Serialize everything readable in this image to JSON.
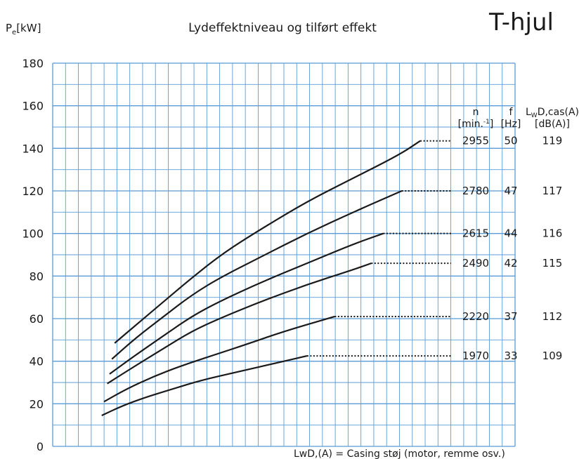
{
  "chart_data": {
    "type": "line",
    "title": "Lydeffektniveau og tilført effekt",
    "corner_title": "T-hjul",
    "ylabel_main": "P",
    "ylabel_sub": "e",
    "ylabel_unit": "[kW]",
    "ylim": [
      0,
      180
    ],
    "yticks": [
      0,
      20,
      40,
      60,
      80,
      100,
      120,
      140,
      160,
      180
    ],
    "grid": true,
    "table_headers": {
      "n": {
        "line1": "n",
        "line2a": "[min.",
        "line2sup": "-1",
        "line2b": "]"
      },
      "f": {
        "line1": "f",
        "line2": "[Hz]"
      },
      "l": {
        "line1a": "L",
        "line1sub": "W",
        "line1b": "D,cas(A)",
        "line2": "[dB(A)]"
      }
    },
    "series": [
      {
        "n": "2955",
        "f": "50",
        "l": "119",
        "color": "#1a1a1a",
        "points": [
          [
            0.134,
            48.5
          ],
          [
            0.18,
            57
          ],
          [
            0.24,
            68
          ],
          [
            0.3,
            79
          ],
          [
            0.37,
            91
          ],
          [
            0.45,
            102
          ],
          [
            0.55,
            115
          ],
          [
            0.65,
            126
          ],
          [
            0.75,
            137
          ],
          [
            0.795,
            143.5
          ]
        ]
      },
      {
        "n": "2780",
        "f": "47",
        "l": "117",
        "color": "#1a1a1a",
        "points": [
          [
            0.128,
            41
          ],
          [
            0.18,
            51
          ],
          [
            0.24,
            61
          ],
          [
            0.3,
            71
          ],
          [
            0.36,
            79
          ],
          [
            0.45,
            89
          ],
          [
            0.55,
            100
          ],
          [
            0.65,
            110
          ],
          [
            0.755,
            120
          ]
        ]
      },
      {
        "n": "2615",
        "f": "44",
        "l": "116",
        "color": "#1a1a1a",
        "points": [
          [
            0.123,
            34
          ],
          [
            0.18,
            43
          ],
          [
            0.24,
            52
          ],
          [
            0.3,
            61
          ],
          [
            0.36,
            68
          ],
          [
            0.45,
            77
          ],
          [
            0.55,
            86
          ],
          [
            0.65,
            95
          ],
          [
            0.715,
            100
          ]
        ]
      },
      {
        "n": "2490",
        "f": "42",
        "l": "115",
        "color": "#1a1a1a",
        "points": [
          [
            0.118,
            29.5
          ],
          [
            0.18,
            38
          ],
          [
            0.24,
            46
          ],
          [
            0.3,
            54
          ],
          [
            0.36,
            60
          ],
          [
            0.45,
            68
          ],
          [
            0.55,
            76
          ],
          [
            0.65,
            83
          ],
          [
            0.689,
            86
          ]
        ]
      },
      {
        "n": "2220",
        "f": "37",
        "l": "112",
        "color": "#1a1a1a",
        "points": [
          [
            0.111,
            21
          ],
          [
            0.16,
            27
          ],
          [
            0.22,
            33
          ],
          [
            0.28,
            38
          ],
          [
            0.35,
            43
          ],
          [
            0.42,
            48
          ],
          [
            0.5,
            54
          ],
          [
            0.61,
            61
          ]
        ]
      },
      {
        "n": "1970",
        "f": "33",
        "l": "109",
        "color": "#1a1a1a",
        "points": [
          [
            0.106,
            14.5
          ],
          [
            0.15,
            19
          ],
          [
            0.2,
            23
          ],
          [
            0.26,
            27
          ],
          [
            0.32,
            31
          ],
          [
            0.4,
            35
          ],
          [
            0.48,
            39
          ],
          [
            0.55,
            42.5
          ]
        ]
      }
    ],
    "annotation": "LwD,(A) = Casing støj (motor, remme osv.)"
  }
}
